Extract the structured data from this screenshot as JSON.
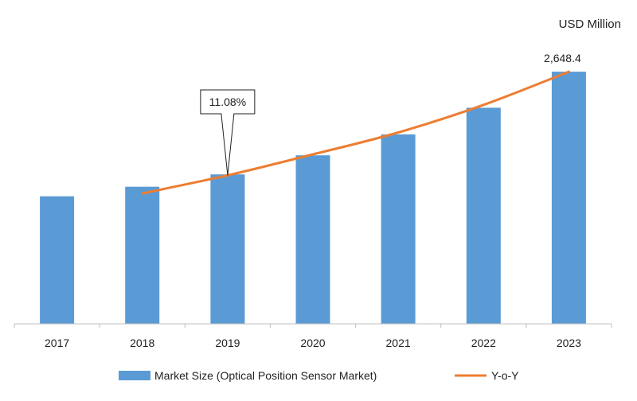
{
  "chart_data": {
    "type": "bar",
    "unit": "USD Million",
    "categories": [
      "2017",
      "2018",
      "2019",
      "2020",
      "2021",
      "2022",
      "2023"
    ],
    "series": [
      {
        "name": "Market Size (Optical Position Sensor Market)",
        "type": "bar",
        "color": "#5b9bd5",
        "values": [
          1340,
          1440,
          1570,
          1770,
          1990,
          2270,
          2648.4
        ]
      },
      {
        "name": "Y-o-Y",
        "type": "line",
        "color": "#ed7d31",
        "values": [
          null,
          1370,
          1560,
          1780,
          2010,
          2300,
          2648.4
        ]
      }
    ],
    "data_labels": [
      {
        "category": "2023",
        "text": "2,648.4"
      }
    ],
    "callout": {
      "category": "2019",
      "text": "11.08%"
    },
    "ylim": [
      0,
      2800
    ],
    "grid": false,
    "legend_position": "bottom"
  }
}
